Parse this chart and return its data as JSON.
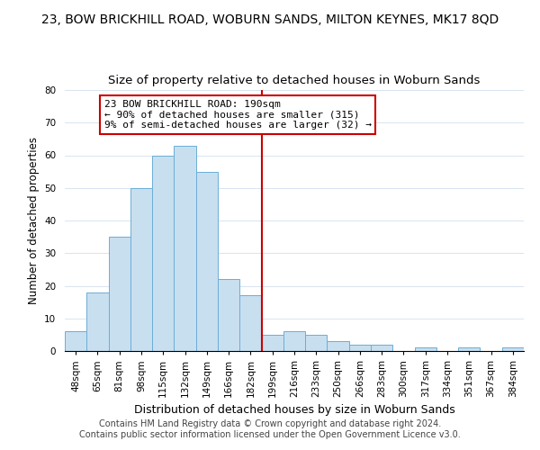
{
  "title": "23, BOW BRICKHILL ROAD, WOBURN SANDS, MILTON KEYNES, MK17 8QD",
  "subtitle": "Size of property relative to detached houses in Woburn Sands",
  "xlabel": "Distribution of detached houses by size in Woburn Sands",
  "ylabel": "Number of detached properties",
  "bar_labels": [
    "48sqm",
    "65sqm",
    "81sqm",
    "98sqm",
    "115sqm",
    "132sqm",
    "149sqm",
    "166sqm",
    "182sqm",
    "199sqm",
    "216sqm",
    "233sqm",
    "250sqm",
    "266sqm",
    "283sqm",
    "300sqm",
    "317sqm",
    "334sqm",
    "351sqm",
    "367sqm",
    "384sqm"
  ],
  "bar_values": [
    6,
    18,
    35,
    50,
    60,
    63,
    55,
    22,
    17,
    5,
    6,
    5,
    3,
    2,
    2,
    0,
    1,
    0,
    1,
    0,
    1
  ],
  "bar_color": "#c8dff0",
  "bar_edge_color": "#6baed6",
  "ref_line_x": 8.5,
  "ref_line_color": "#cc0000",
  "annotation_line1": "23 BOW BRICKHILL ROAD: 190sqm",
  "annotation_line2": "← 90% of detached houses are smaller (315)",
  "annotation_line3": "9% of semi-detached houses are larger (32) →",
  "annotation_box_edge_color": "#cc0000",
  "ylim": [
    0,
    80
  ],
  "yticks": [
    0,
    10,
    20,
    30,
    40,
    50,
    60,
    70,
    80
  ],
  "footer_line1": "Contains HM Land Registry data © Crown copyright and database right 2024.",
  "footer_line2": "Contains public sector information licensed under the Open Government Licence v3.0.",
  "title_fontsize": 10,
  "subtitle_fontsize": 9.5,
  "xlabel_fontsize": 9,
  "ylabel_fontsize": 8.5,
  "tick_fontsize": 7.5,
  "annotation_fontsize": 8,
  "footer_fontsize": 7
}
